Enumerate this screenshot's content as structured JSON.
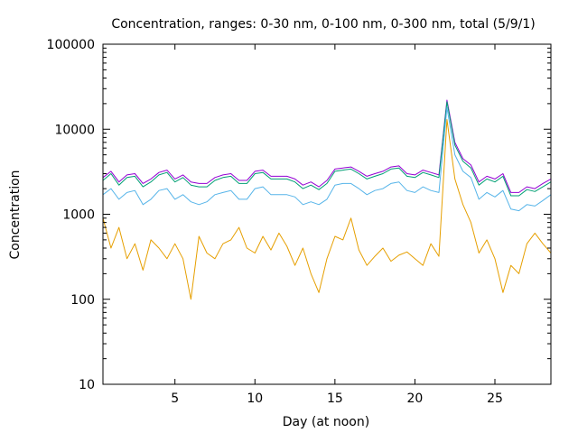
{
  "chart_data": {
    "type": "line",
    "title": "Concentration, ranges: 0-30 nm, 0-100 nm, 0-300 nm, total (5/9/1)",
    "xlabel": "Day (at noon)",
    "ylabel": "Concentration",
    "xlim": [
      0.5,
      28.5
    ],
    "ylim": [
      10,
      100000
    ],
    "yscale": "log",
    "x_ticks": [
      5,
      10,
      15,
      20,
      25
    ],
    "y_ticks": [
      {
        "value": 10,
        "label": "10"
      },
      {
        "value": 100,
        "label": "100"
      },
      {
        "value": 1000,
        "label": "1000"
      },
      {
        "value": 10000,
        "label": "10000"
      },
      {
        "value": 100000,
        "label": "100000"
      }
    ],
    "grid": false,
    "legend": "none",
    "series": [
      {
        "color": "#9400d3",
        "x": [
          0.5,
          1,
          1.5,
          2,
          2.5,
          3,
          3.5,
          4,
          4.5,
          5,
          5.5,
          6,
          6.5,
          7,
          7.5,
          8,
          8.5,
          9,
          9.5,
          10,
          10.5,
          11,
          11.5,
          12,
          12.5,
          13,
          13.5,
          14,
          14.5,
          15,
          15.5,
          16,
          16.5,
          17,
          17.5,
          18,
          18.5,
          19,
          19.5,
          20,
          20.5,
          21,
          21.5,
          22,
          22.5,
          23,
          23.5,
          24,
          24.5,
          25,
          25.5,
          26,
          26.5,
          27,
          27.5,
          28,
          28.5
        ],
        "y": [
          2700,
          3200,
          2400,
          2900,
          3000,
          2300,
          2600,
          3100,
          3300,
          2600,
          2900,
          2400,
          2300,
          2300,
          2700,
          2900,
          3000,
          2500,
          2500,
          3200,
          3300,
          2800,
          2800,
          2800,
          2600,
          2200,
          2400,
          2100,
          2500,
          3400,
          3500,
          3600,
          3200,
          2800,
          3000,
          3200,
          3600,
          3700,
          3000,
          2900,
          3300,
          3100,
          2900,
          22000,
          7000,
          4500,
          3800,
          2400,
          2800,
          2600,
          3000,
          1800,
          1800,
          2100,
          2000,
          2300,
          2600
        ]
      },
      {
        "color": "#009e73",
        "x": [
          0.5,
          1,
          1.5,
          2,
          2.5,
          3,
          3.5,
          4,
          4.5,
          5,
          5.5,
          6,
          6.5,
          7,
          7.5,
          8,
          8.5,
          9,
          9.5,
          10,
          10.5,
          11,
          11.5,
          12,
          12.5,
          13,
          13.5,
          14,
          14.5,
          15,
          15.5,
          16,
          16.5,
          17,
          17.5,
          18,
          18.5,
          19,
          19.5,
          20,
          20.5,
          21,
          21.5,
          22,
          22.5,
          23,
          23.5,
          24,
          24.5,
          25,
          25.5,
          26,
          26.5,
          27,
          27.5,
          28,
          28.5
        ],
        "y": [
          2500,
          3000,
          2200,
          2700,
          2800,
          2100,
          2400,
          2900,
          3100,
          2400,
          2700,
          2200,
          2100,
          2100,
          2500,
          2700,
          2800,
          2300,
          2300,
          3000,
          3100,
          2600,
          2600,
          2600,
          2400,
          2000,
          2200,
          1950,
          2300,
          3200,
          3300,
          3400,
          3000,
          2600,
          2800,
          3000,
          3400,
          3500,
          2800,
          2700,
          3100,
          2900,
          2700,
          21000,
          6500,
          4200,
          3500,
          2200,
          2600,
          2400,
          2800,
          1650,
          1650,
          1950,
          1850,
          2100,
          2400
        ]
      },
      {
        "color": "#56b4e9",
        "x": [
          0.5,
          1,
          1.5,
          2,
          2.5,
          3,
          3.5,
          4,
          4.5,
          5,
          5.5,
          6,
          6.5,
          7,
          7.5,
          8,
          8.5,
          9,
          9.5,
          10,
          10.5,
          11,
          11.5,
          12,
          12.5,
          13,
          13.5,
          14,
          14.5,
          15,
          15.5,
          16,
          16.5,
          17,
          17.5,
          18,
          18.5,
          19,
          19.5,
          20,
          20.5,
          21,
          21.5,
          22,
          22.5,
          23,
          23.5,
          24,
          24.5,
          25,
          25.5,
          26,
          26.5,
          27,
          27.5,
          28,
          28.5
        ],
        "y": [
          1700,
          2000,
          1500,
          1800,
          1900,
          1300,
          1500,
          1900,
          2000,
          1500,
          1700,
          1400,
          1300,
          1400,
          1700,
          1800,
          1900,
          1500,
          1500,
          2000,
          2100,
          1700,
          1700,
          1700,
          1600,
          1300,
          1400,
          1300,
          1500,
          2200,
          2300,
          2300,
          2000,
          1700,
          1900,
          2000,
          2300,
          2400,
          1900,
          1800,
          2100,
          1900,
          1800,
          18000,
          5000,
          3200,
          2700,
          1500,
          1800,
          1600,
          1900,
          1150,
          1100,
          1300,
          1250,
          1450,
          1700
        ]
      },
      {
        "color": "#e69f00",
        "x": [
          0.5,
          1,
          1.5,
          2,
          2.5,
          3,
          3.5,
          4,
          4.5,
          5,
          5.5,
          6,
          6.5,
          7,
          7.5,
          8,
          8.5,
          9,
          9.5,
          10,
          10.5,
          11,
          11.5,
          12,
          12.5,
          13,
          13.5,
          14,
          14.5,
          15,
          15.5,
          16,
          16.5,
          17,
          17.5,
          18,
          18.5,
          19,
          19.5,
          20,
          20.5,
          21,
          21.5,
          22,
          22.5,
          23,
          23.5,
          24,
          24.5,
          25,
          25.5,
          26,
          26.5,
          27,
          27.5,
          28,
          28.5
        ],
        "y": [
          900,
          400,
          700,
          300,
          450,
          220,
          500,
          400,
          300,
          450,
          300,
          100,
          550,
          350,
          300,
          450,
          500,
          700,
          400,
          350,
          550,
          380,
          600,
          420,
          250,
          400,
          200,
          120,
          300,
          550,
          500,
          900,
          380,
          250,
          320,
          400,
          280,
          330,
          360,
          300,
          250,
          450,
          320,
          13000,
          2600,
          1300,
          800,
          350,
          500,
          300,
          120,
          250,
          200,
          450,
          600,
          450,
          350
        ]
      }
    ]
  }
}
